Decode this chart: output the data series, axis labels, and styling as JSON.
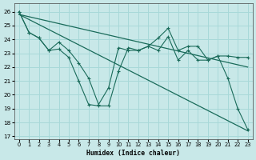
{
  "xlabel": "Humidex (Indice chaleur)",
  "bg_color": "#c8e8e8",
  "grid_color": "#a8d8d8",
  "line_color": "#1a6b5a",
  "xlim": [
    -0.5,
    23.5
  ],
  "ylim": [
    16.8,
    26.6
  ],
  "yticks": [
    17,
    18,
    19,
    20,
    21,
    22,
    23,
    24,
    25,
    26
  ],
  "xticks": [
    0,
    1,
    2,
    3,
    4,
    5,
    6,
    7,
    8,
    9,
    10,
    11,
    12,
    13,
    14,
    15,
    16,
    17,
    18,
    19,
    20,
    21,
    22,
    23
  ],
  "line_zigzag1_x": [
    0,
    1,
    2,
    3,
    4,
    5,
    6,
    7,
    8,
    9,
    10,
    11,
    12,
    13,
    14,
    15,
    16,
    17,
    18,
    19,
    20,
    21,
    22,
    23
  ],
  "line_zigzag1_y": [
    26.0,
    24.5,
    24.1,
    23.2,
    23.8,
    23.2,
    22.3,
    21.2,
    19.3,
    20.5,
    23.4,
    23.2,
    23.2,
    23.5,
    24.1,
    24.8,
    23.2,
    23.5,
    23.5,
    22.5,
    22.8,
    22.8,
    22.7,
    22.7
  ],
  "line_zigzag2_x": [
    0,
    1,
    2,
    3,
    4,
    5,
    6,
    7,
    8,
    9,
    10,
    11,
    12,
    13,
    14,
    15,
    16,
    17,
    18,
    19,
    20,
    21,
    22,
    23
  ],
  "line_zigzag2_y": [
    26.0,
    24.5,
    24.1,
    23.2,
    23.3,
    22.7,
    21.0,
    19.3,
    19.2,
    19.2,
    21.7,
    23.4,
    23.2,
    23.5,
    23.2,
    24.2,
    22.5,
    23.2,
    22.5,
    22.5,
    22.8,
    21.2,
    19.0,
    17.5
  ],
  "line_trend1_x": [
    0,
    23
  ],
  "line_trend1_y": [
    25.8,
    22.0
  ],
  "line_trend2_x": [
    0,
    23
  ],
  "line_trend2_y": [
    25.8,
    17.4
  ]
}
